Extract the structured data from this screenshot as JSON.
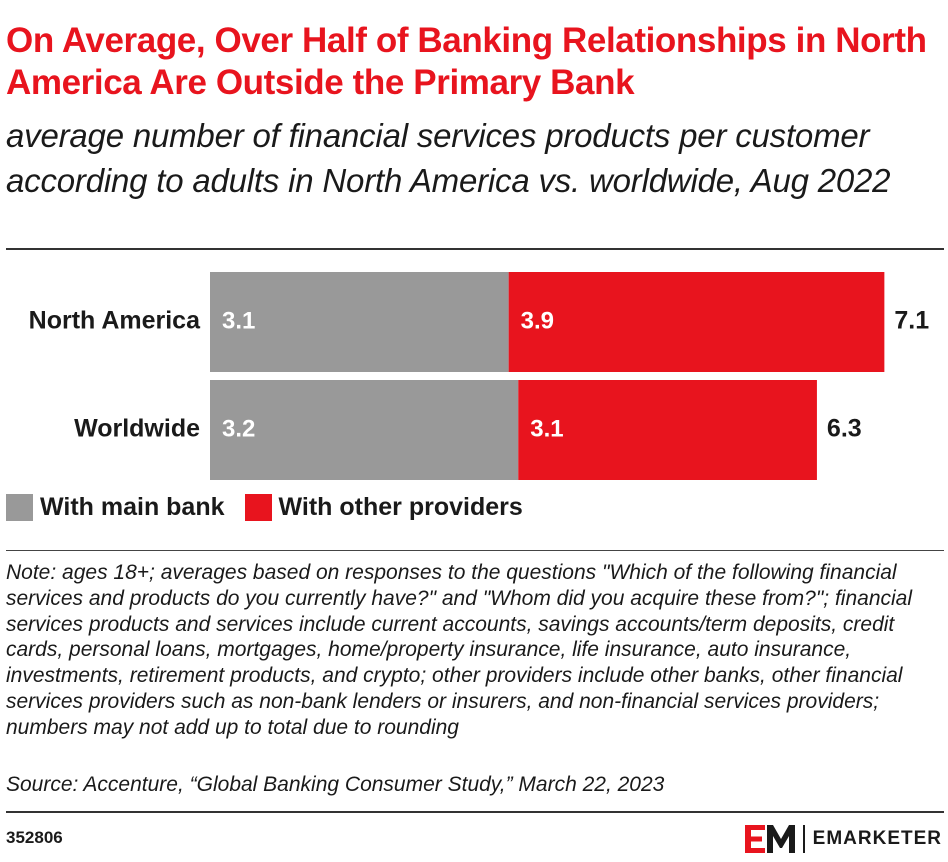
{
  "header": {
    "title": "On Average, Over Half of Banking Relationships in North America Are Outside the Primary Bank",
    "subtitle": "average number of financial services products per customer according to adults in North America vs. worldwide, Aug 2022"
  },
  "chart_data": {
    "type": "bar",
    "orientation": "horizontal",
    "stacked": true,
    "categories": [
      "North America",
      "Worldwide"
    ],
    "series": [
      {
        "name": "With main bank",
        "color": "#999999",
        "values": [
          3.1,
          3.2
        ],
        "labels": [
          "3.1",
          "3.2"
        ]
      },
      {
        "name": "With other providers",
        "color": "#e8141e",
        "values": [
          3.9,
          3.1
        ],
        "labels": [
          "3.9",
          "3.1"
        ]
      }
    ],
    "totals": [
      7.1,
      6.3
    ],
    "total_labels": [
      "7.1",
      "6.3"
    ],
    "xlim": [
      0,
      7.1
    ],
    "grid": false,
    "legend": "bottom-left"
  },
  "legend": {
    "items": [
      {
        "label": "With main bank",
        "color": "#999999"
      },
      {
        "label": "With other providers",
        "color": "#e8141e"
      }
    ]
  },
  "footnotes": {
    "note": "Note: ages 18+; averages based on responses to the questions \"Which of the following financial services and products do you currently have?\" and \"Whom did you acquire these from?\"; financial services products and services include current accounts, savings accounts/term deposits, credit cards, personal loans, mortgages, home/property insurance, life insurance, auto insurance, investments, retirement products, and crypto; other providers include other banks, other financial services providers such as non-bank lenders or insurers, and non-financial services providers; numbers may not add up to total due to rounding",
    "source": "Source: Accenture, “Global Banking Consumer Study,” March 22, 2023"
  },
  "footer": {
    "chart_id": "352806",
    "brand": "EMARKETER",
    "logo_icon": "em-logo-icon",
    "brand_color": "#e8141e"
  }
}
